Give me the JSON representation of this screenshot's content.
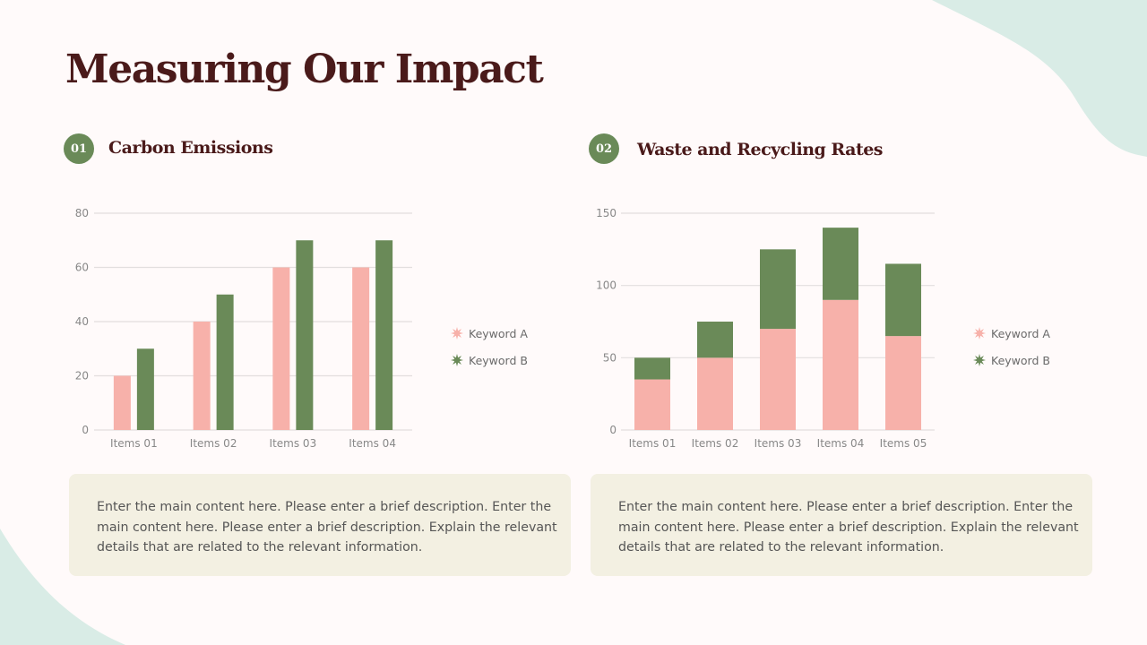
{
  "title": "Measuring Our Impact",
  "sections": [
    {
      "number": "01",
      "title": "Carbon Emissions",
      "description": "Enter the main content here. Please enter a brief description. Enter the main content here. Please enter a brief description. Explain the relevant details that are related to the relevant information."
    },
    {
      "number": "02",
      "title": "Waste and Recycling Rates",
      "description": "Enter the main content here. Please enter a brief description. Enter the main content here. Please enter a brief description. Explain the relevant details that are related to the relevant information."
    }
  ],
  "legend_icon": "star-burst-icon",
  "colors": {
    "keyword_a": "#f7b1aa",
    "keyword_b": "#6a8a58",
    "title": "#4a1a1a",
    "blob": "#d9ece6"
  },
  "chart_data": [
    {
      "type": "bar",
      "categories": [
        "Items 01",
        "Items 02",
        "Items 03",
        "Items 04"
      ],
      "series": [
        {
          "name": "Keyword A",
          "values": [
            20,
            40,
            60,
            60
          ]
        },
        {
          "name": "Keyword B",
          "values": [
            30,
            50,
            70,
            70
          ]
        }
      ],
      "ylim": [
        0,
        80
      ],
      "yticks": [
        0,
        20,
        40,
        60,
        80
      ],
      "grid": true,
      "legend": "right"
    },
    {
      "type": "bar",
      "stacked": true,
      "categories": [
        "Items 01",
        "Items 02",
        "Items 03",
        "Items 04",
        "Items 05"
      ],
      "series": [
        {
          "name": "Keyword A",
          "values": [
            35,
            50,
            70,
            90,
            65
          ]
        },
        {
          "name": "Keyword B",
          "values": [
            15,
            25,
            55,
            50,
            50
          ]
        }
      ],
      "ylim": [
        0,
        150
      ],
      "yticks": [
        0,
        50,
        100,
        150
      ],
      "grid": true,
      "legend": "right"
    }
  ]
}
